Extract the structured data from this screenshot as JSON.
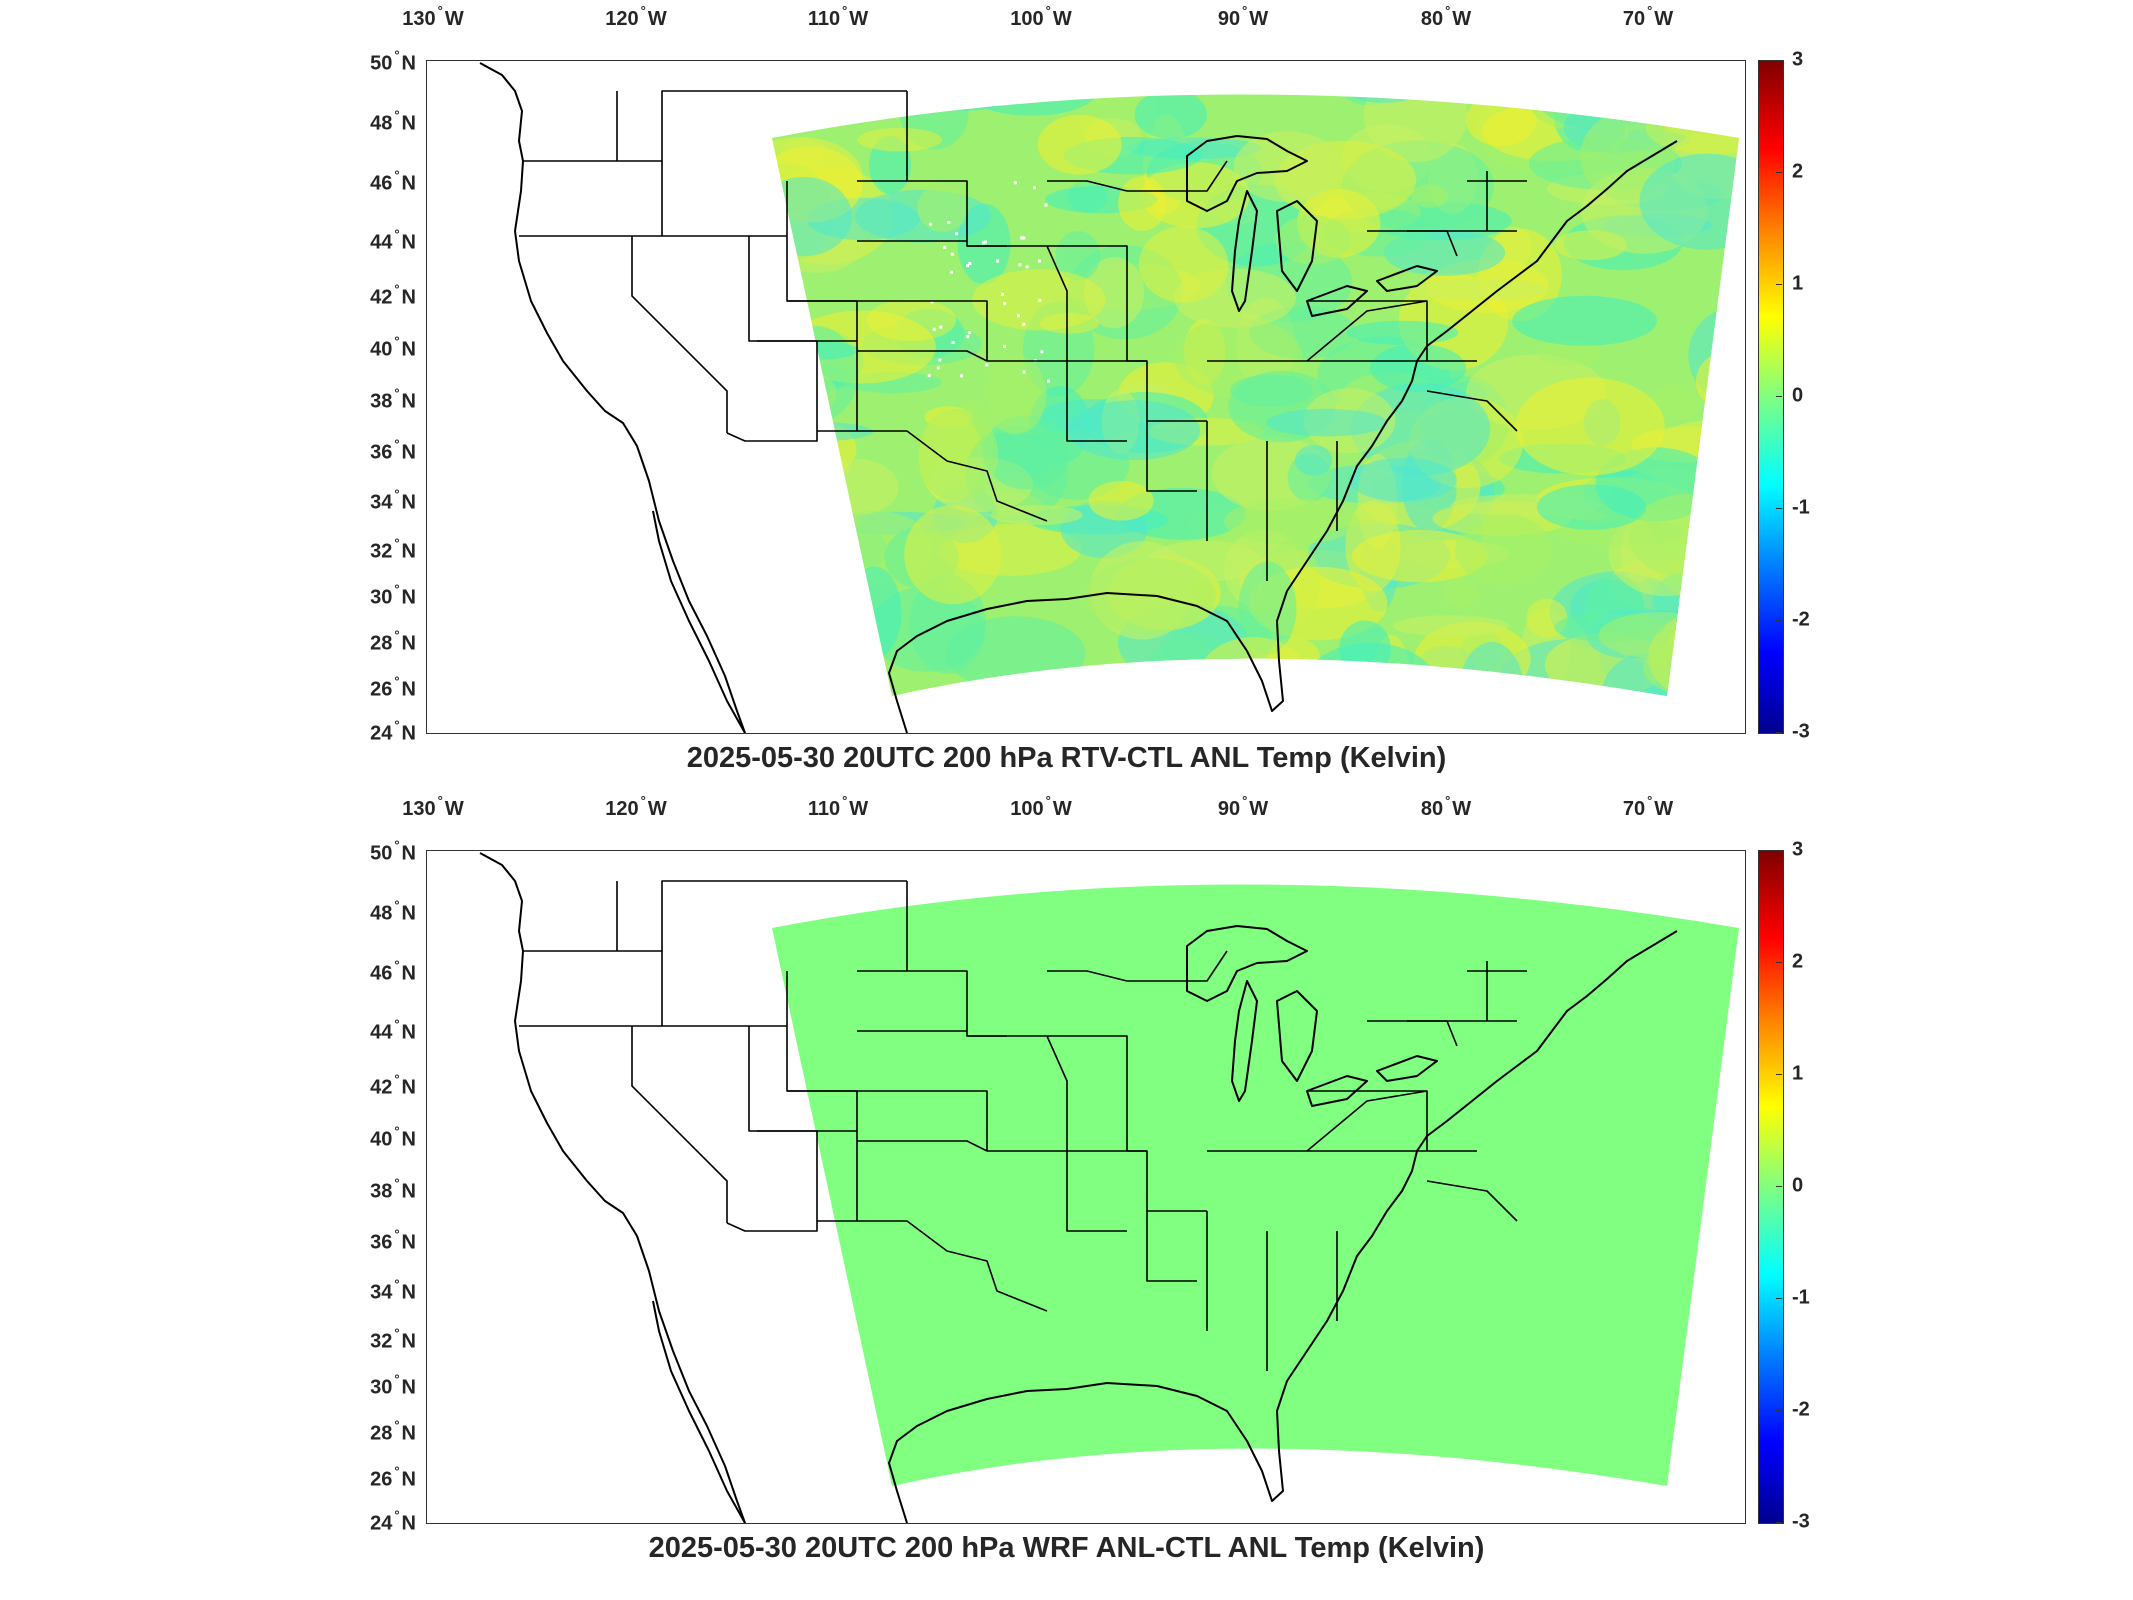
{
  "panels": [
    {
      "title": "2025-05-30 20UTC 200 hPa RTV-CTL ANL Temp (Kelvin)",
      "field": "anomaly-varied"
    },
    {
      "title": "2025-05-30 20UTC 200 hPa WRF ANL-CTL ANL Temp (Kelvin)",
      "field": "uniform-zero"
    }
  ],
  "axes": {
    "lon_ticks": [
      {
        "value": "130",
        "suffix": "W"
      },
      {
        "value": "120",
        "suffix": "W"
      },
      {
        "value": "110",
        "suffix": "W"
      },
      {
        "value": "100",
        "suffix": "W"
      },
      {
        "value": "90",
        "suffix": "W"
      },
      {
        "value": "80",
        "suffix": "W"
      },
      {
        "value": "70",
        "suffix": "W"
      }
    ],
    "lat_ticks": [
      {
        "value": "50",
        "suffix": "N"
      },
      {
        "value": "48",
        "suffix": "N"
      },
      {
        "value": "46",
        "suffix": "N"
      },
      {
        "value": "44",
        "suffix": "N"
      },
      {
        "value": "42",
        "suffix": "N"
      },
      {
        "value": "40",
        "suffix": "N"
      },
      {
        "value": "38",
        "suffix": "N"
      },
      {
        "value": "36",
        "suffix": "N"
      },
      {
        "value": "34",
        "suffix": "N"
      },
      {
        "value": "32",
        "suffix": "N"
      },
      {
        "value": "30",
        "suffix": "N"
      },
      {
        "value": "28",
        "suffix": "N"
      },
      {
        "value": "26",
        "suffix": "N"
      },
      {
        "value": "24",
        "suffix": "N"
      }
    ]
  },
  "colorbar": {
    "ticks": [
      "3",
      "2",
      "1",
      "0",
      "-1",
      "-2",
      "-3"
    ],
    "range": [
      -3,
      3
    ],
    "colormap": "jet"
  },
  "colors": {
    "zero": "#80ff80",
    "slightly_positive": "#c8f060",
    "slightly_negative": "#40f0c0",
    "coast": "#000000"
  }
}
